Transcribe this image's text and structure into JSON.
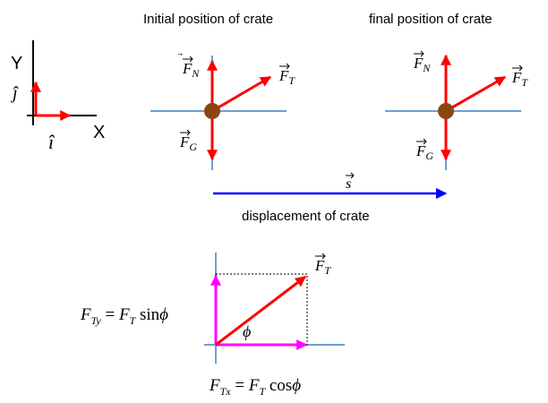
{
  "colors": {
    "axis": "#6f9fd1",
    "force": "#ff0000",
    "displacement": "#0000ff",
    "component": "#ff00ff",
    "crate": "#8b4513",
    "text": "#000000"
  },
  "axes_key": {
    "y_label": "Y",
    "x_label": "X",
    "j_hat": "ĵ",
    "i_hat": "î"
  },
  "initial": {
    "title": "Initial position of crate",
    "fn_symbol": "F",
    "fn_sub": "N",
    "ft_symbol": "F",
    "ft_sub": "T",
    "fg_symbol": "F",
    "fg_sub": "G"
  },
  "final": {
    "title": "final position of crate",
    "fn_symbol": "F",
    "fn_sub": "N",
    "ft_symbol": "F",
    "ft_sub": "T",
    "fg_symbol": "F",
    "fg_sub": "G"
  },
  "displacement": {
    "symbol": "s",
    "label": "displacement of crate"
  },
  "components": {
    "ft_symbol": "F",
    "ft_sub": "T",
    "angle": "ϕ",
    "fty_lhs": "F",
    "fty_lhs_sub": "Ty",
    "fty_eq": " = ",
    "fty_rhs": "F",
    "fty_rhs_sub": "T",
    "fty_func": " sin",
    "fty_angle": "ϕ",
    "ftx_lhs": "F",
    "ftx_lhs_sub": "Tx",
    "ftx_eq": " = ",
    "ftx_rhs": "F",
    "ftx_rhs_sub": "T",
    "ftx_func": " cos",
    "ftx_angle": "ϕ"
  }
}
